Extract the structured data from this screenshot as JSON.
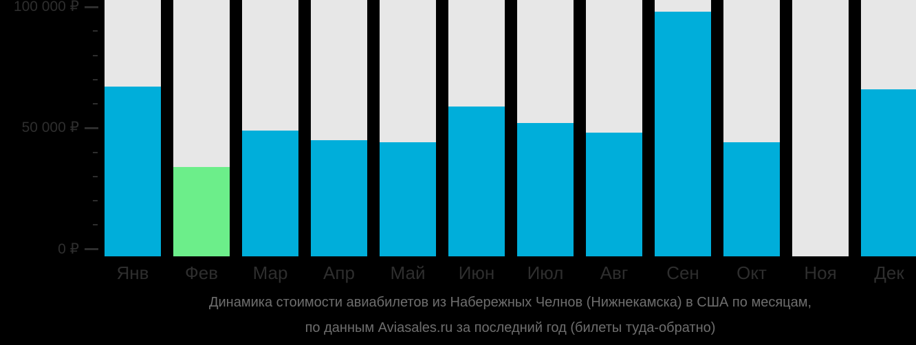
{
  "chart_data": {
    "type": "bar",
    "title": "Динамика стоимости авиабилетов из Набережных Челнов (Нижнекамска) в США по месяцам, по данным Aviasales.ru за последний год (билеты туда-обратно)",
    "categories": [
      "Янв",
      "Фев",
      "Мар",
      "Апр",
      "Май",
      "Июн",
      "Июл",
      "Авг",
      "Сен",
      "Окт",
      "Ноя",
      "Дек"
    ],
    "values": [
      67000,
      34000,
      49000,
      45000,
      44000,
      59000,
      52000,
      48000,
      98000,
      44000,
      null,
      66000
    ],
    "unit": "₽",
    "ylim": [
      0,
      100000
    ],
    "yticks": [
      {
        "value": 0,
        "label": "0 ₽"
      },
      {
        "value": 50000,
        "label": "50 000 ₽"
      },
      {
        "value": 100000,
        "label": "100 000 ₽"
      }
    ],
    "minor_tick_step": 10000,
    "highlight_index": 1,
    "grid": false,
    "legend": "none",
    "colors": {
      "bar": "#00aeda",
      "highlight": "#6cee8a",
      "track": "#e7e7e7",
      "background": "#000000",
      "axis_text": "#2e2e2e",
      "caption_text": "#6e6e6e"
    }
  },
  "caption": {
    "line1": "Динамика стоимости авиабилетов из Набережных Челнов (Нижнекамска) в США по месяцам,",
    "line2": "по данным Aviasales.ru за последний год (билеты туда-обратно)"
  }
}
